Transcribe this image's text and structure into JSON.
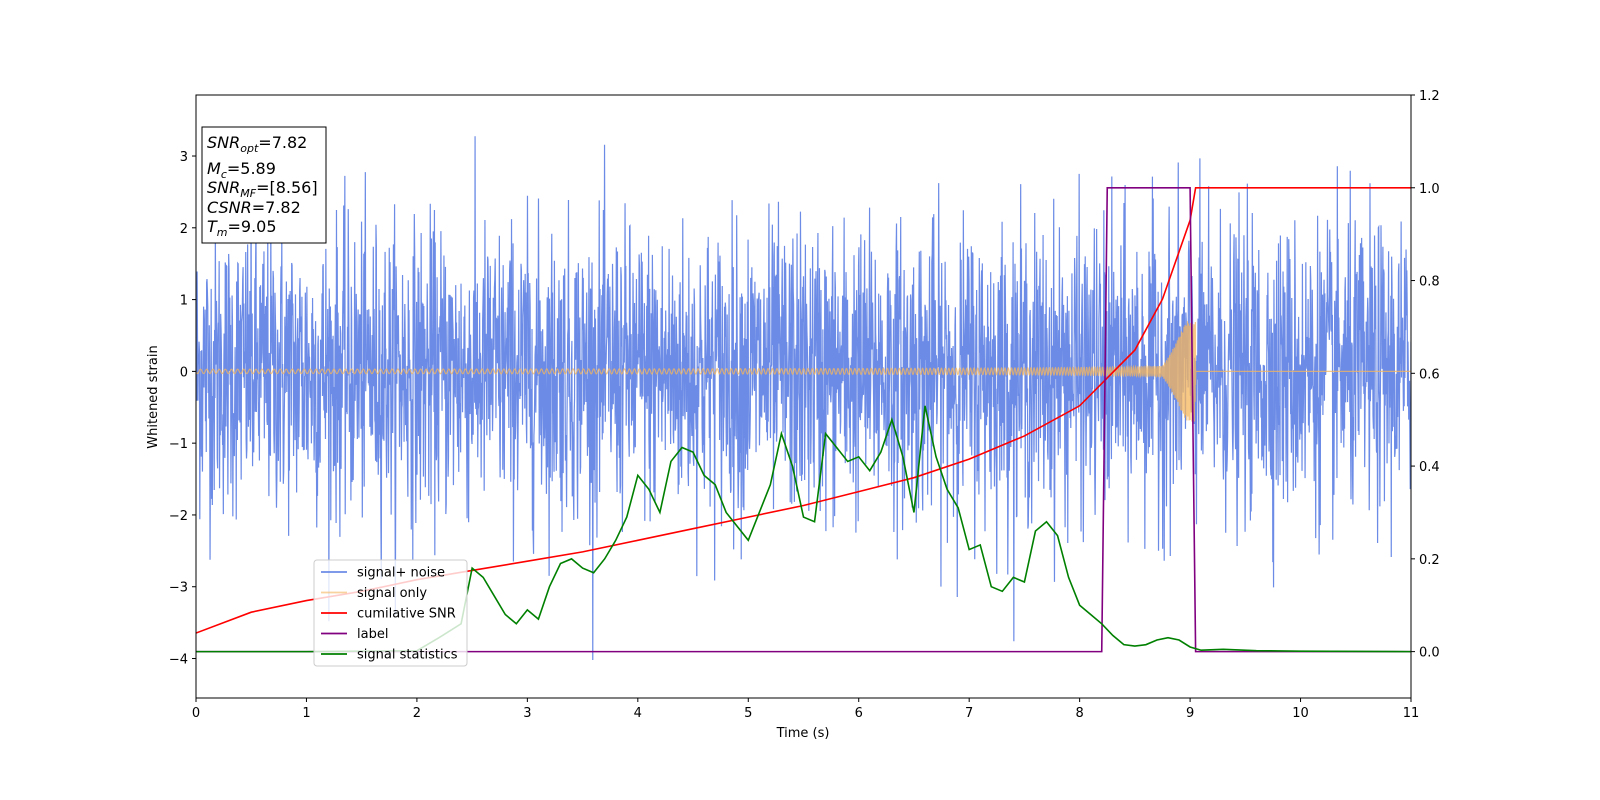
{
  "chart_data": {
    "type": "line",
    "xlabel": "Time (s)",
    "ylabel": "Whitened strain",
    "xlim": [
      0,
      11
    ],
    "ylim": [
      -4.55,
      3.85
    ],
    "y2lim": [
      -0.1,
      1.2
    ],
    "x_ticks": [
      0,
      1,
      2,
      3,
      4,
      5,
      6,
      7,
      8,
      9,
      10,
      11
    ],
    "y_ticks": [
      -4,
      -3,
      -2,
      -1,
      0,
      1,
      2,
      3
    ],
    "y2_ticks": [
      "0.0",
      "0.2",
      "0.4",
      "0.6",
      "0.8",
      "1.0",
      "1.2"
    ],
    "y2_tick_values": [
      0,
      0.2,
      0.4,
      0.6,
      0.8,
      1.0,
      1.2
    ],
    "grid": false,
    "legend_position": "lower-left",
    "colors": {
      "noise": "#6b8be6",
      "signal": "#f5b55c",
      "cumsnr": "#ff0000",
      "label": "#800080",
      "stats": "#008000"
    },
    "series": [
      {
        "name": "signal+ noise",
        "axis": "left",
        "kind": "noise",
        "amplitude_std": 1.0,
        "amplitude_range": [
          -4.2,
          3.5
        ]
      },
      {
        "name": "signal only",
        "axis": "left",
        "kind": "chirp",
        "merger_time": 9.05,
        "peak_amplitude": 0.7
      },
      {
        "name": "cumilative SNR",
        "axis": "right",
        "x": [
          0,
          0.5,
          1,
          1.5,
          2,
          2.5,
          3,
          3.5,
          4,
          4.5,
          5,
          5.5,
          6,
          6.5,
          7,
          7.5,
          8,
          8.5,
          8.75,
          9.0,
          9.05,
          9.1,
          10,
          11
        ],
        "values": [
          0.04,
          0.085,
          0.11,
          0.13,
          0.155,
          0.175,
          0.195,
          0.215,
          0.24,
          0.265,
          0.29,
          0.315,
          0.345,
          0.375,
          0.415,
          0.465,
          0.53,
          0.65,
          0.76,
          0.93,
          1.0,
          1.0,
          1.0,
          1.0
        ]
      },
      {
        "name": "label",
        "axis": "right",
        "x": [
          0,
          8.2,
          8.25,
          9.0,
          9.05,
          11
        ],
        "values": [
          0,
          0,
          1,
          1,
          0,
          0
        ]
      },
      {
        "name": "signal statistics",
        "axis": "right",
        "x": [
          0,
          1,
          2,
          2.2,
          2.4,
          2.5,
          2.6,
          2.7,
          2.8,
          2.9,
          3.0,
          3.1,
          3.2,
          3.3,
          3.4,
          3.5,
          3.6,
          3.7,
          3.8,
          3.9,
          4.0,
          4.1,
          4.2,
          4.3,
          4.4,
          4.5,
          4.6,
          4.7,
          4.8,
          4.9,
          5.0,
          5.1,
          5.2,
          5.3,
          5.4,
          5.5,
          5.6,
          5.7,
          5.8,
          5.9,
          6.0,
          6.1,
          6.2,
          6.3,
          6.4,
          6.5,
          6.6,
          6.7,
          6.8,
          6.9,
          7.0,
          7.1,
          7.2,
          7.3,
          7.4,
          7.5,
          7.6,
          7.7,
          7.8,
          7.9,
          8.0,
          8.1,
          8.2,
          8.3,
          8.4,
          8.5,
          8.6,
          8.7,
          8.8,
          8.9,
          9.0,
          9.1,
          9.3,
          9.6,
          10,
          11
        ],
        "values": [
          0,
          0,
          0.002,
          0.03,
          0.06,
          0.18,
          0.16,
          0.12,
          0.08,
          0.06,
          0.09,
          0.07,
          0.14,
          0.19,
          0.2,
          0.18,
          0.17,
          0.2,
          0.24,
          0.29,
          0.38,
          0.35,
          0.3,
          0.41,
          0.44,
          0.43,
          0.38,
          0.36,
          0.3,
          0.27,
          0.24,
          0.3,
          0.36,
          0.47,
          0.4,
          0.29,
          0.28,
          0.47,
          0.44,
          0.41,
          0.42,
          0.39,
          0.43,
          0.5,
          0.42,
          0.3,
          0.53,
          0.42,
          0.35,
          0.31,
          0.22,
          0.23,
          0.14,
          0.13,
          0.16,
          0.15,
          0.26,
          0.28,
          0.25,
          0.16,
          0.1,
          0.08,
          0.06,
          0.035,
          0.015,
          0.012,
          0.015,
          0.025,
          0.03,
          0.025,
          0.01,
          0.003,
          0.005,
          0.002,
          0.001,
          0
        ]
      }
    ],
    "annotation": [
      {
        "base": "SNR",
        "sub": "opt",
        "value": "=7.82"
      },
      {
        "base": "M",
        "sub": "c",
        "value": "=5.89"
      },
      {
        "base": "SNR",
        "sub": "MF",
        "value": "=[8.56]"
      },
      {
        "base": "CSNR",
        "sub": "",
        "value": "=7.82"
      },
      {
        "base": "T",
        "sub": "m",
        "value": "=9.05"
      }
    ]
  }
}
